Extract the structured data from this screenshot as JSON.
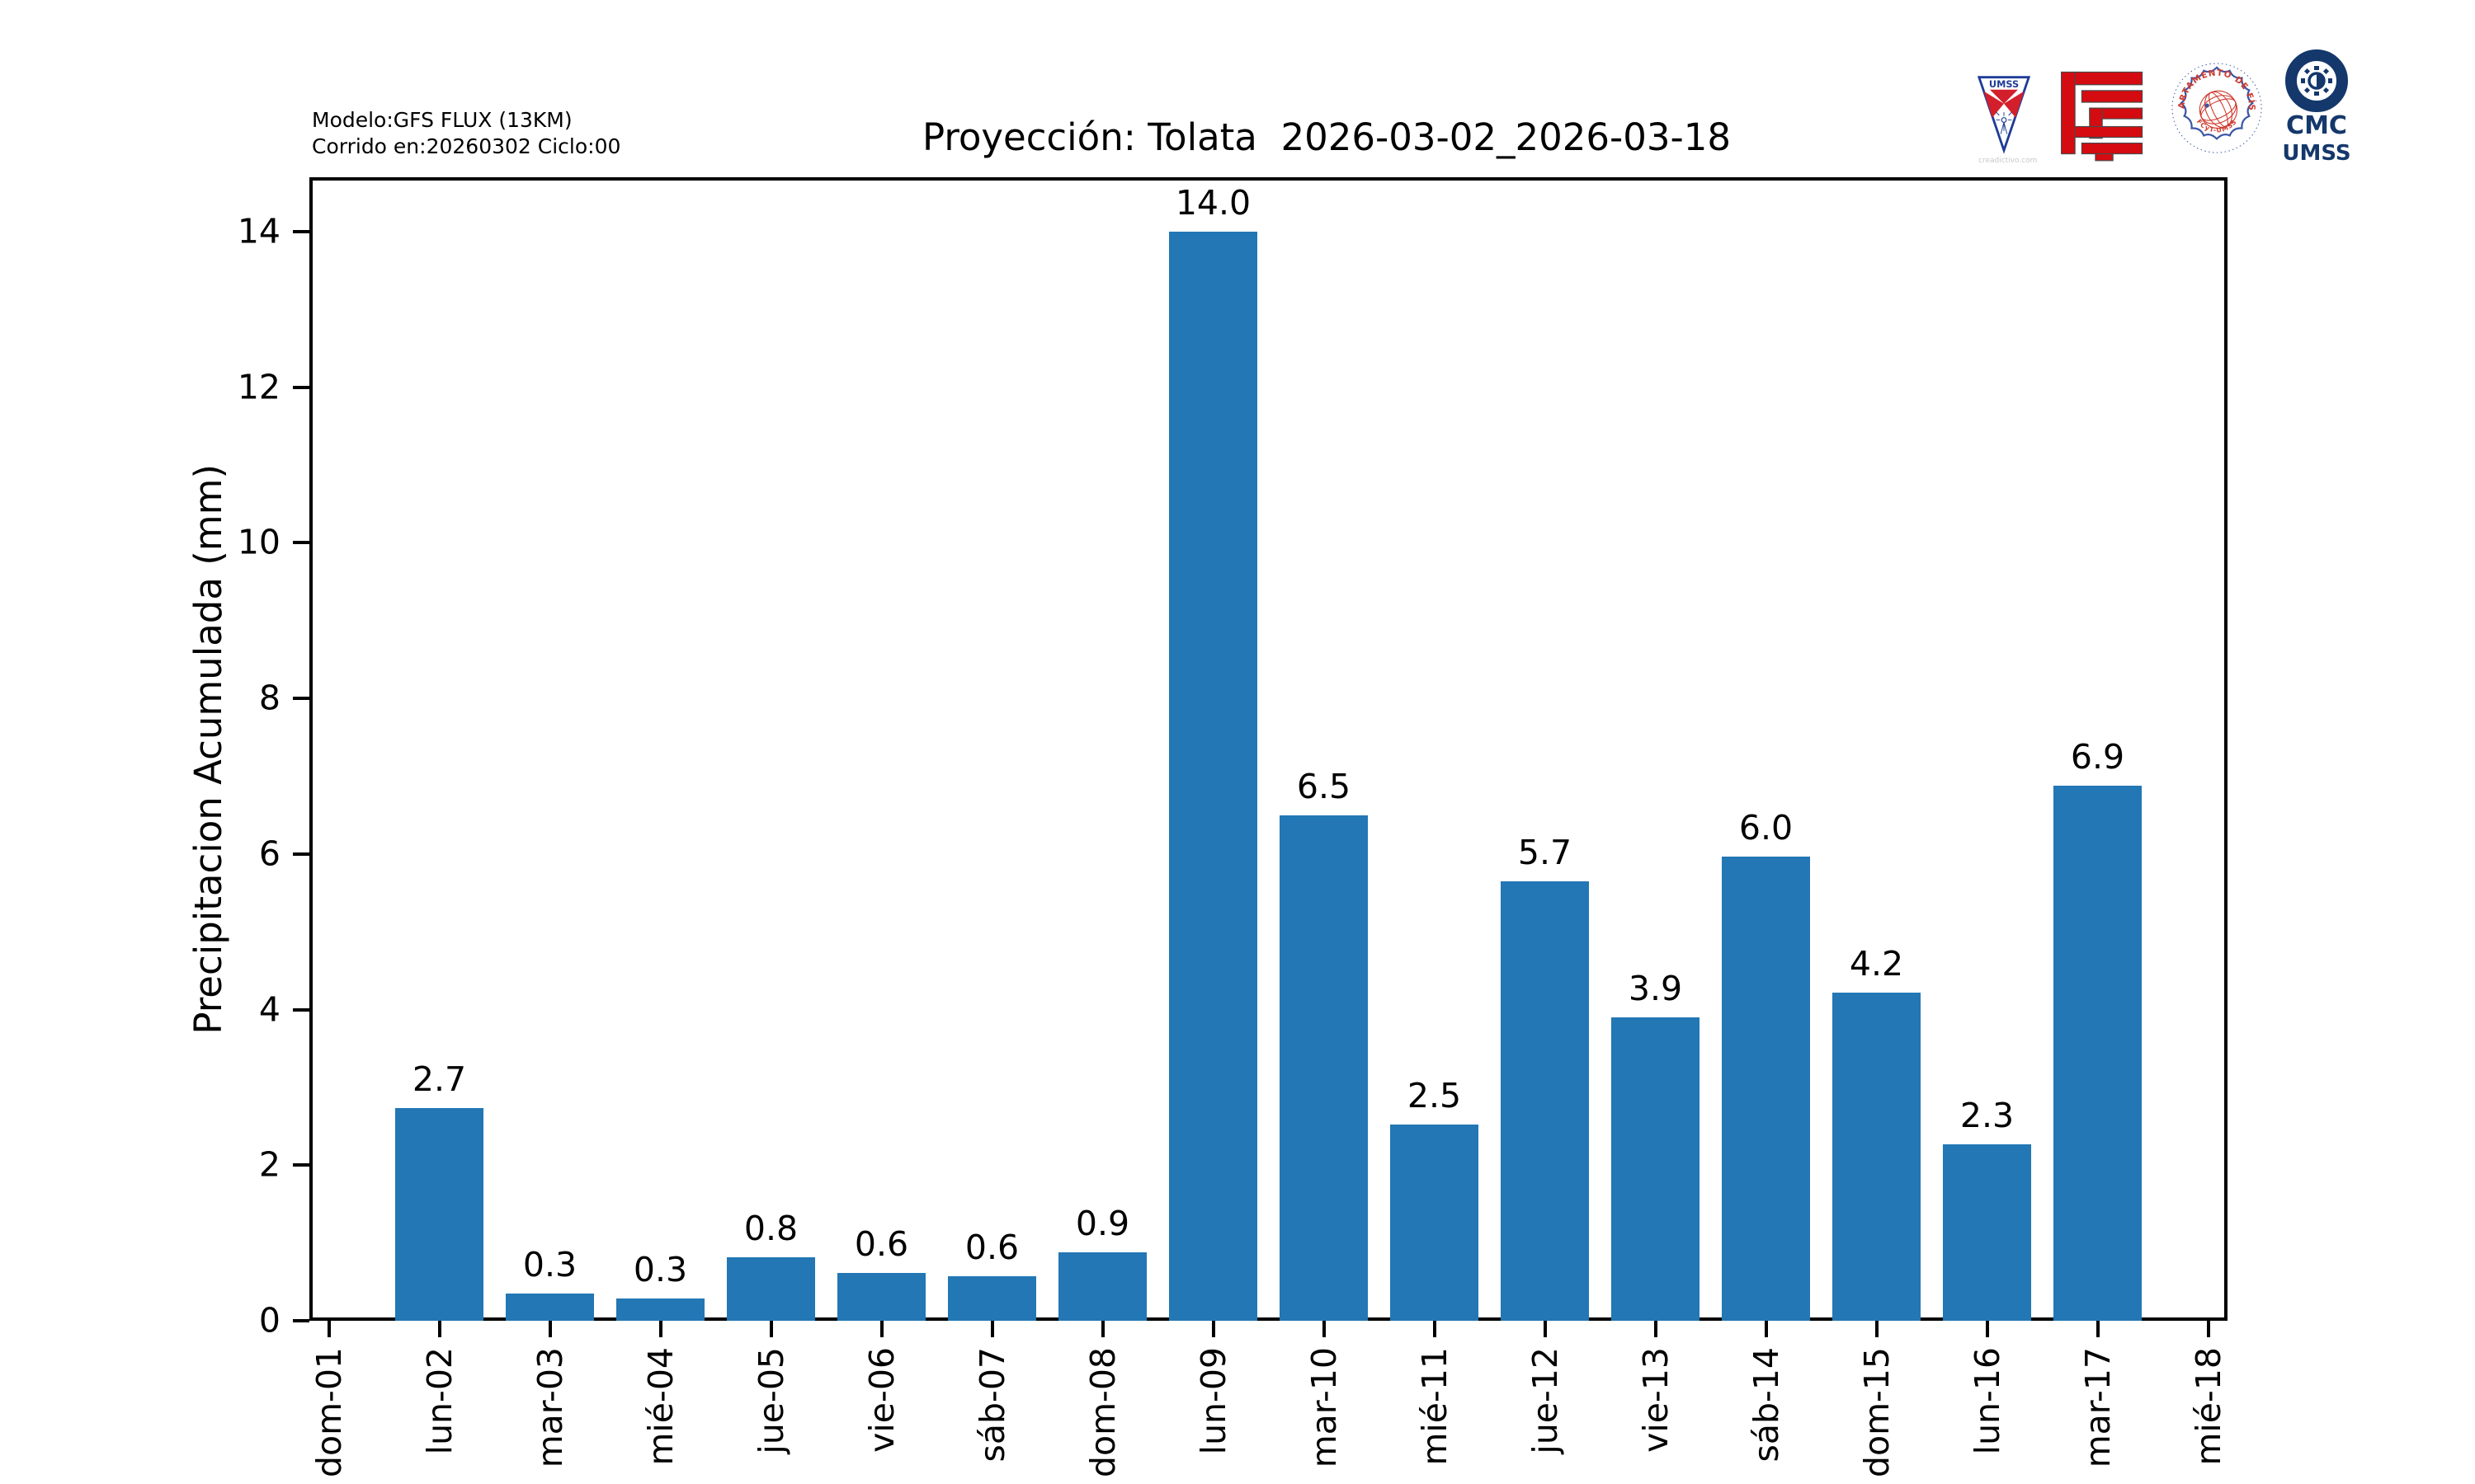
{
  "header": {
    "model_line1": "Modelo:GFS FLUX (13KM)",
    "model_line2": "Corrido en:20260302 Ciclo:00",
    "title": "Proyección: Tolata  2026-03-02_2026-03-18"
  },
  "logos": {
    "umss_pennant_text": "UMSS",
    "umss_watermark": "creadictivo.com",
    "seal_text_top": "DEPARTAMENTO DE FÍSICA",
    "seal_text_bottom": "FCyT-UMSS",
    "cmc_line1": "CMC",
    "cmc_line2": "UMSS"
  },
  "chart_data": {
    "type": "bar",
    "title": "Proyección: Tolata  2026-03-02_2026-03-18",
    "ylabel": "Precipitacion Acumulada (mm)",
    "xlabel": "",
    "categories": [
      "dom-01",
      "lun-02",
      "mar-03",
      "mié-04",
      "jue-05",
      "vie-06",
      "sáb-07",
      "dom-08",
      "lun-09",
      "mar-10",
      "mié-11",
      "jue-12",
      "vie-13",
      "sáb-14",
      "dom-15",
      "lun-16",
      "mar-17",
      "mié-18"
    ],
    "values": [
      null,
      2.7,
      0.3,
      0.3,
      0.8,
      0.6,
      0.6,
      0.9,
      14.0,
      6.5,
      2.5,
      5.7,
      3.9,
      6.0,
      4.2,
      2.3,
      6.9,
      null
    ],
    "bar_heights_mm": [
      0,
      2.73,
      0.35,
      0.29,
      0.82,
      0.62,
      0.57,
      0.88,
      14.0,
      6.5,
      2.52,
      5.65,
      3.9,
      5.97,
      4.22,
      2.27,
      6.88,
      0
    ],
    "value_label_decimals": 1,
    "yticks": [
      0,
      2,
      4,
      6,
      8,
      10,
      12,
      14
    ],
    "ylim": [
      0,
      14.7
    ],
    "bar_color": "#2277b4",
    "axis_color": "#000000",
    "grid": false,
    "legend": null
  }
}
